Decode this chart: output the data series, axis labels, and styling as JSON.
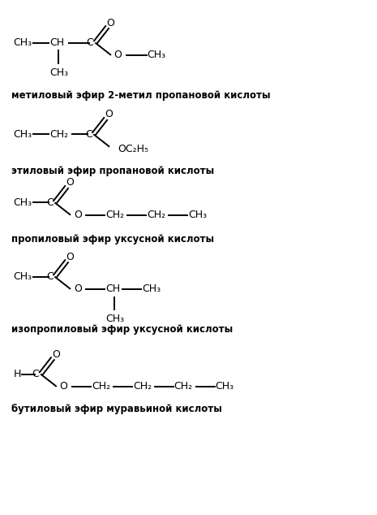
{
  "bg_color": "#ffffff",
  "text_color": "#000000",
  "line_color": "#000000",
  "figsize": [
    4.65,
    6.34
  ],
  "dpi": 100,
  "xlim": [
    0,
    9.3
  ],
  "ylim": [
    0,
    12.68
  ],
  "labels": [
    "метиловый эфир 2-метил пропановой кислоты",
    "этиловый эфир пропановой кислоты",
    "пропиловый эфир уксусной кислоты",
    "изопропиловый эфир уксусной кислоты",
    "бутиловый эфир муравьиной кислоты"
  ]
}
